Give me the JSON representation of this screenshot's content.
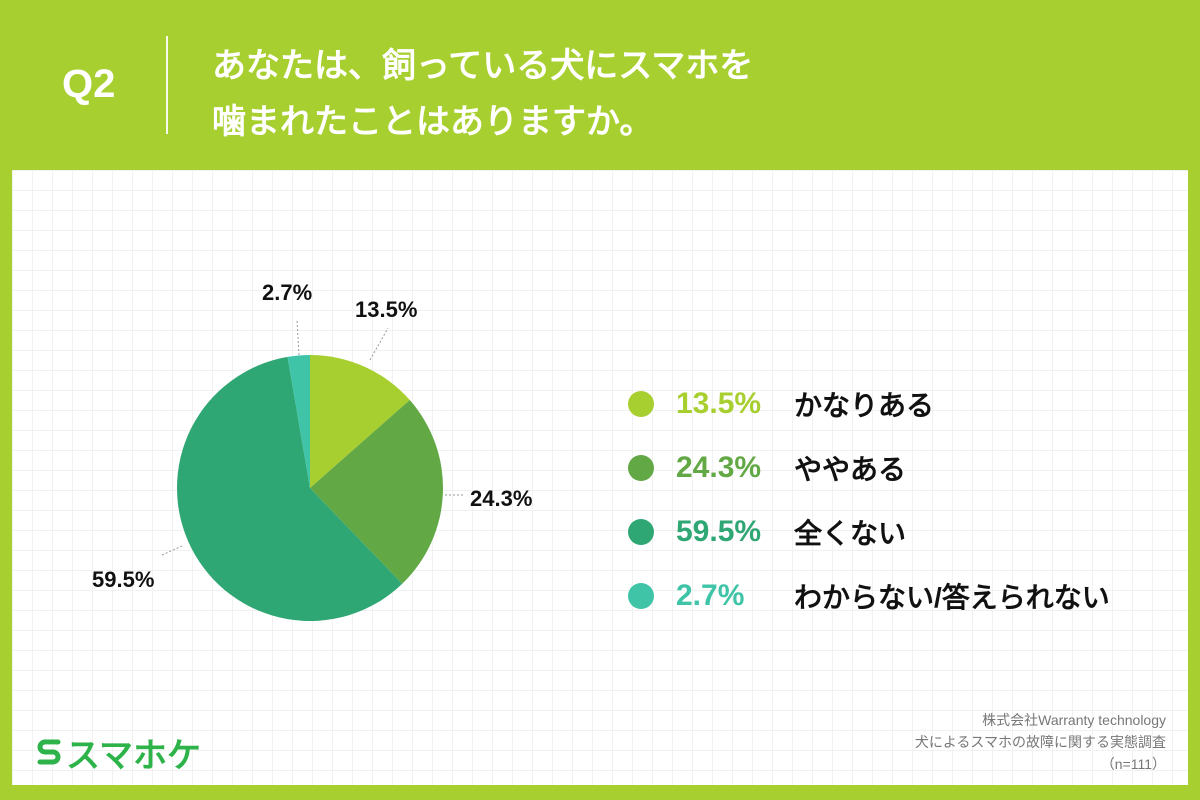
{
  "header": {
    "question_number": "Q2",
    "title_line1": "あなたは、飼っている犬にスマホを",
    "title_line2": "噛まれたことはありますか。"
  },
  "chart_data": {
    "type": "pie",
    "title": "あなたは、飼っている犬にスマホを噛まれたことはありますか。",
    "categories": [
      "かなりある",
      "ややある",
      "全くない",
      "わからない/答えられない"
    ],
    "values": [
      13.5,
      24.3,
      59.5,
      2.7
    ],
    "unit": "%",
    "colors": [
      "#a8cf30",
      "#62a844",
      "#2fa774",
      "#3fc4a8"
    ],
    "start_angle": "12 o'clock, clockwise",
    "legend_position": "right",
    "sample_size": "n=111"
  },
  "pie_labels": [
    "13.5%",
    "24.3%",
    "59.5%",
    "2.7%"
  ],
  "legend": {
    "items": [
      {
        "pct": "13.5%",
        "label": "かなりある",
        "color": "#a8cf30"
      },
      {
        "pct": "24.3%",
        "label": "ややある",
        "color": "#62a844"
      },
      {
        "pct": "59.5%",
        "label": "全くない",
        "color": "#2fa774"
      },
      {
        "pct": "2.7%",
        "label": "わからない/答えられない",
        "color": "#3fc4a8"
      }
    ]
  },
  "footer": {
    "logo_text": "スマホケ",
    "source_line1": "株式会社Warranty technology",
    "source_line2": "犬によるスマホの故障に関する実態調査",
    "source_line3": "（n=111）"
  },
  "colors": {
    "frame": "#a8cf30",
    "logo": "#2db34a"
  }
}
